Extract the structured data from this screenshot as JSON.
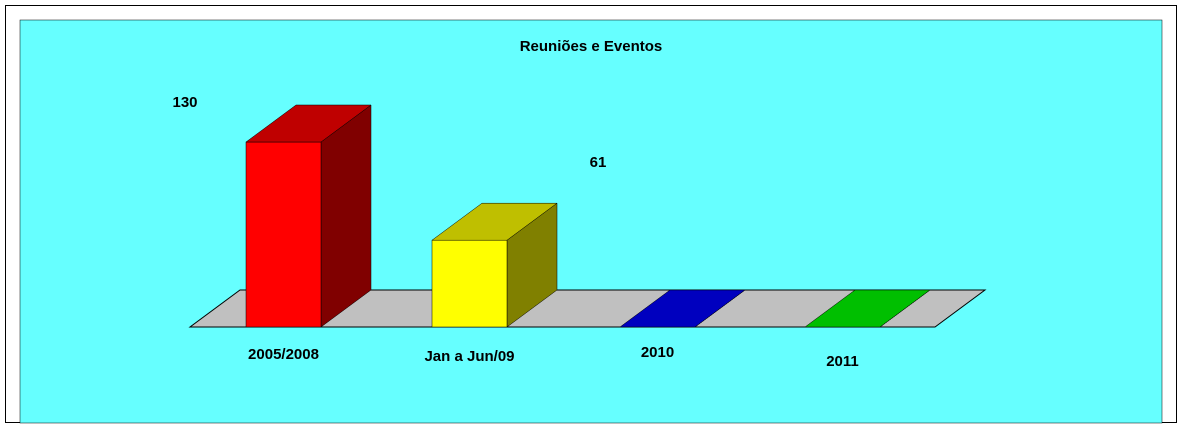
{
  "chart_data": {
    "type": "bar",
    "title": "Reuniões e Eventos",
    "categories": [
      "2005/2008",
      "Jan a Jun/09",
      "2010",
      "2011"
    ],
    "values": [
      130,
      61,
      0,
      0
    ],
    "colors": [
      "#ff0000",
      "#ffff00",
      "#0000ff",
      "#00ff00"
    ]
  }
}
